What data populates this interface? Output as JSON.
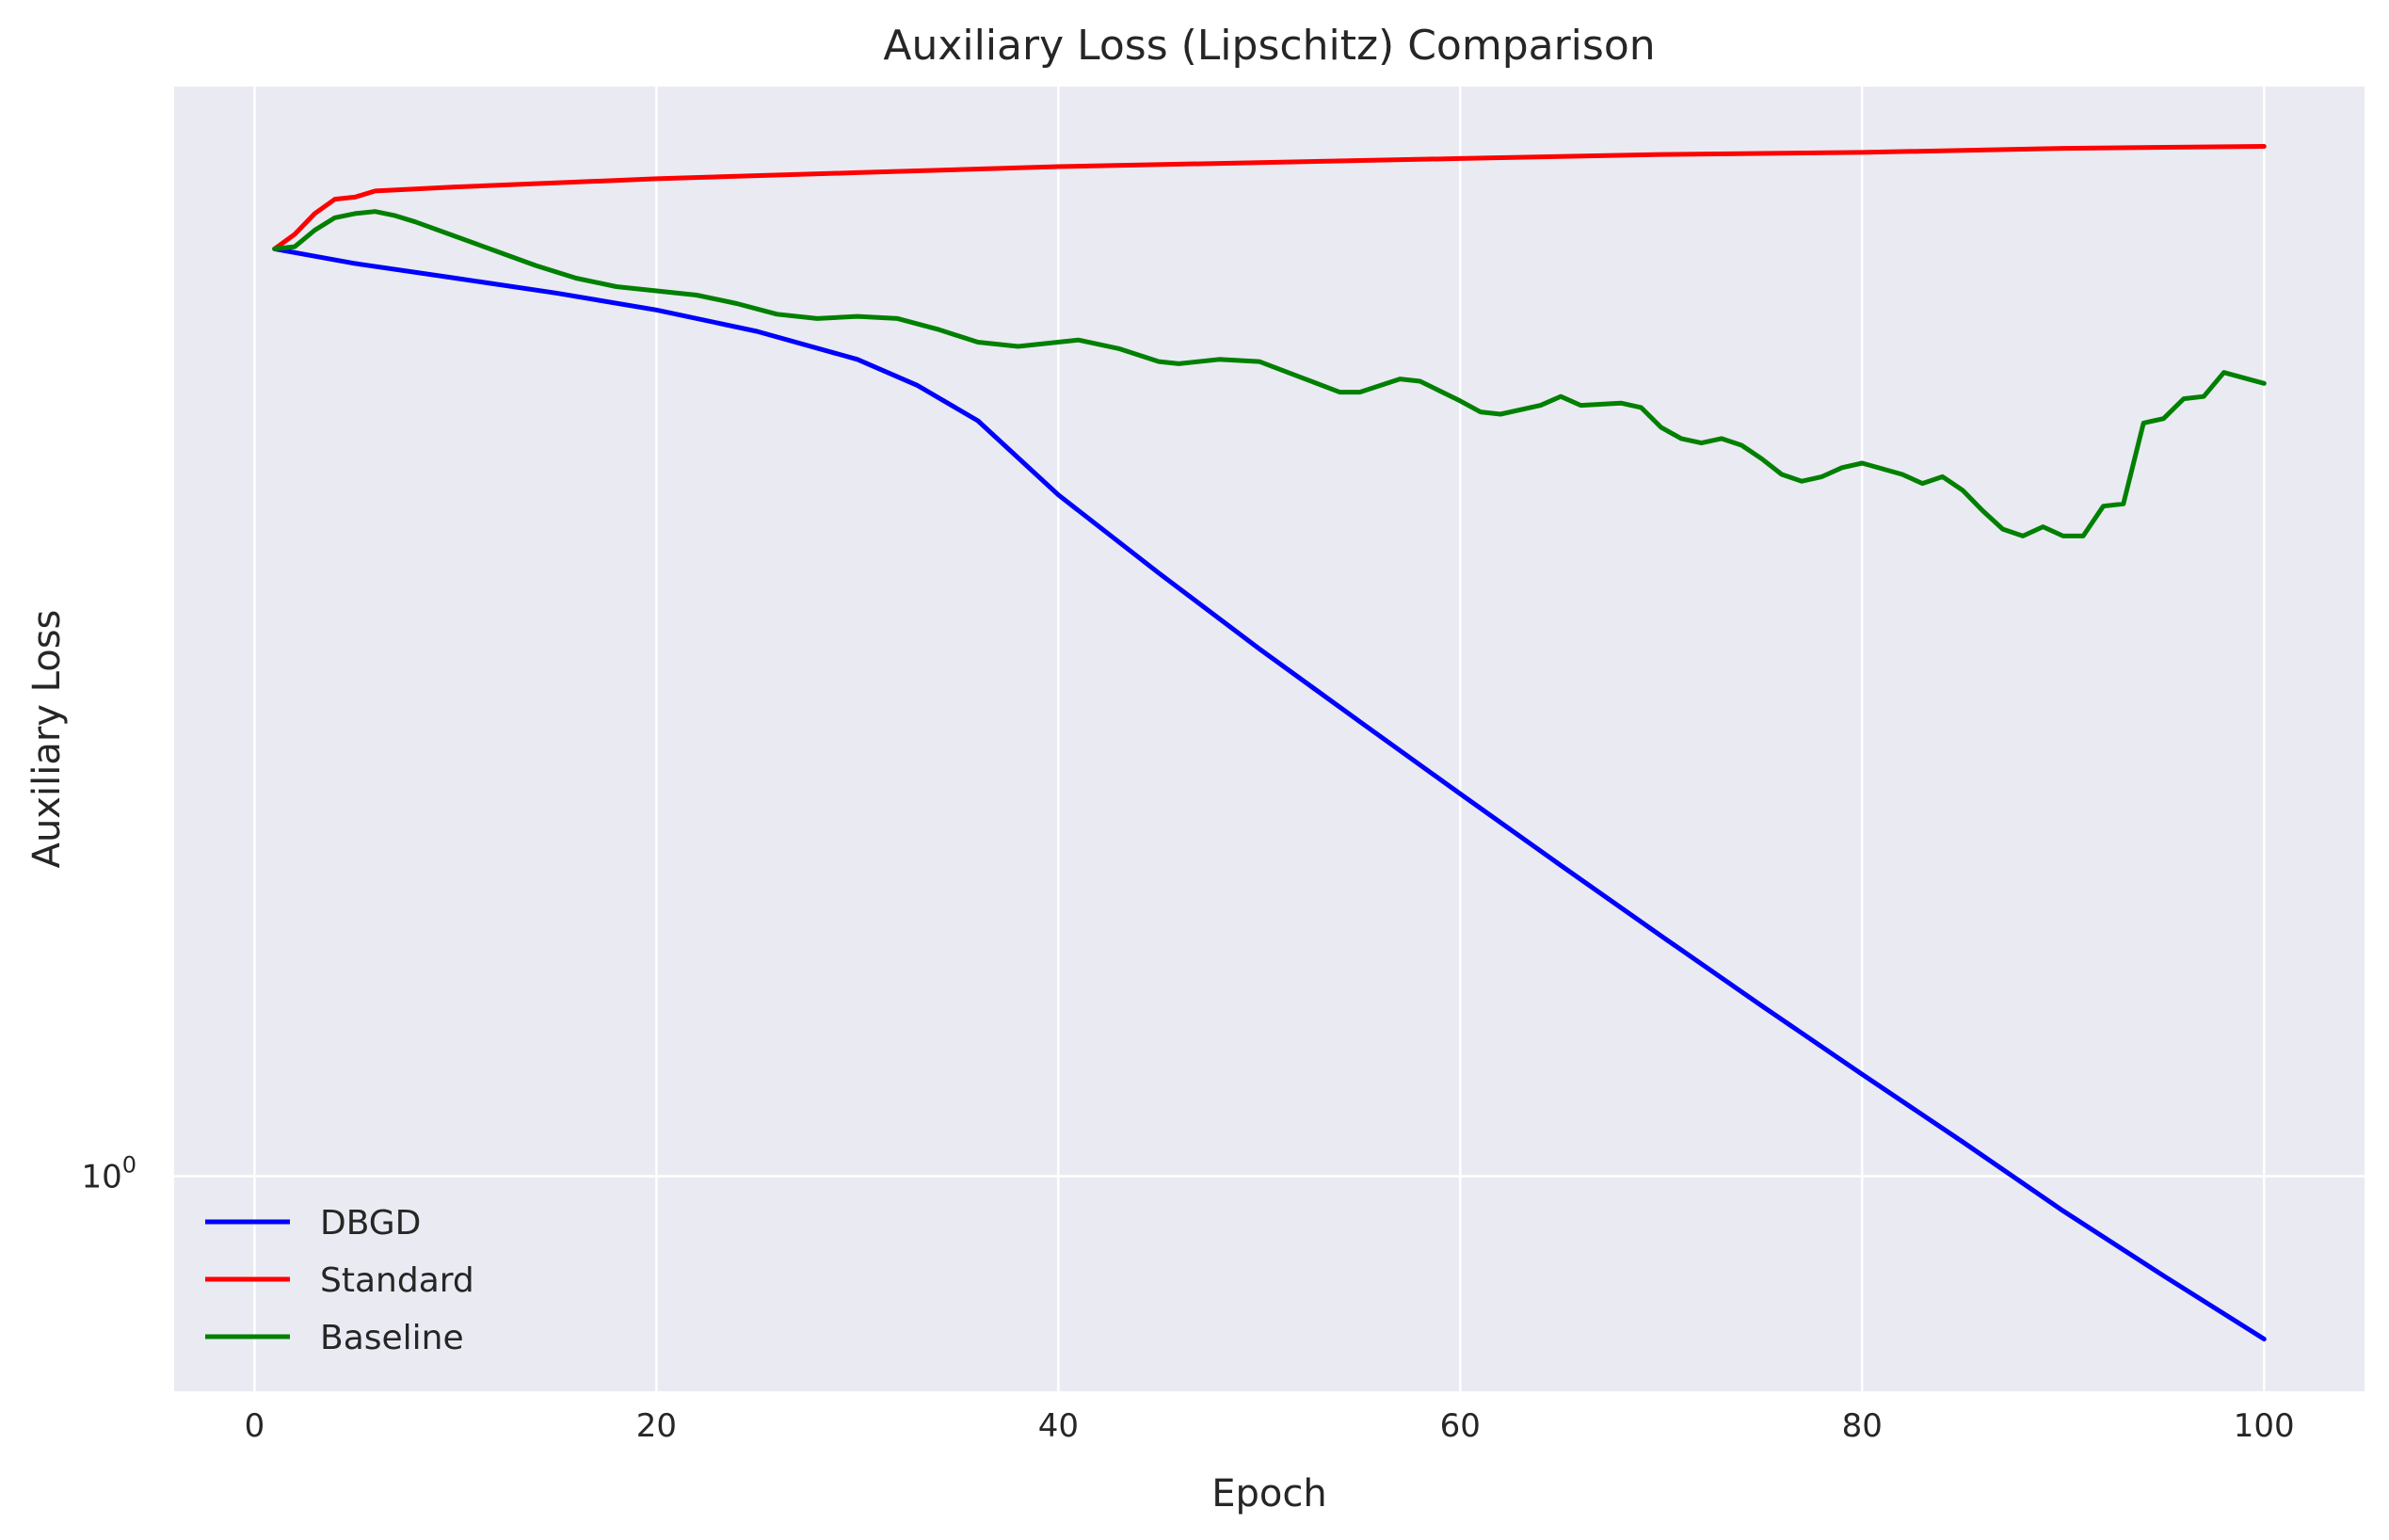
{
  "colors": {
    "plot_background": "#eaeaf2",
    "grid": "#ffffff",
    "text": "#262626"
  },
  "chart_data": {
    "type": "line",
    "title": "Auxiliary Loss (Lipschitz) Comparison",
    "xlabel": "Epoch",
    "ylabel": "Auxiliary Loss",
    "yscale": "log",
    "xlim": [
      -4,
      105
    ],
    "ylim": [
      0.928,
      1.46
    ],
    "xticks": [
      0,
      20,
      40,
      60,
      80,
      100
    ],
    "xtick_labels": [
      "0",
      "20",
      "40",
      "60",
      "80",
      "100"
    ],
    "yticks": [
      1.0
    ],
    "ytick_labels": [
      {
        "base": "10",
        "exp": "0"
      }
    ],
    "grid": true,
    "legend": "lower-left",
    "series": [
      {
        "name": "DBGD",
        "color": "#0000ff",
        "points": [
          [
            1,
            1.38
          ],
          [
            5,
            1.373
          ],
          [
            10,
            1.366
          ],
          [
            15,
            1.359
          ],
          [
            20,
            1.351
          ],
          [
            25,
            1.341
          ],
          [
            30,
            1.328
          ],
          [
            33,
            1.316
          ],
          [
            36,
            1.3
          ],
          [
            40,
            1.267
          ],
          [
            45,
            1.233
          ],
          [
            50,
            1.201
          ],
          [
            55,
            1.171
          ],
          [
            60,
            1.142
          ],
          [
            65,
            1.114
          ],
          [
            70,
            1.087
          ],
          [
            75,
            1.061
          ],
          [
            80,
            1.036
          ],
          [
            85,
            1.012
          ],
          [
            90,
            0.988
          ],
          [
            95,
            0.966
          ],
          [
            100,
            0.945
          ]
        ]
      },
      {
        "name": "Standard",
        "color": "#ff0000",
        "points": [
          [
            1,
            1.38
          ],
          [
            2,
            1.387
          ],
          [
            3,
            1.397
          ],
          [
            4,
            1.404
          ],
          [
            5,
            1.405
          ],
          [
            6,
            1.408
          ],
          [
            10,
            1.41
          ],
          [
            20,
            1.414
          ],
          [
            30,
            1.417
          ],
          [
            40,
            1.42
          ],
          [
            50,
            1.422
          ],
          [
            60,
            1.424
          ],
          [
            70,
            1.426
          ],
          [
            80,
            1.427
          ],
          [
            90,
            1.429
          ],
          [
            100,
            1.43
          ]
        ]
      },
      {
        "name": "Baseline",
        "color": "#008000",
        "points": [
          [
            1,
            1.38
          ],
          [
            2,
            1.381
          ],
          [
            3,
            1.389
          ],
          [
            4,
            1.395
          ],
          [
            5,
            1.397
          ],
          [
            6,
            1.398
          ],
          [
            7,
            1.396
          ],
          [
            8,
            1.393
          ],
          [
            10,
            1.386
          ],
          [
            12,
            1.379
          ],
          [
            14,
            1.372
          ],
          [
            16,
            1.366
          ],
          [
            18,
            1.362
          ],
          [
            20,
            1.36
          ],
          [
            22,
            1.358
          ],
          [
            24,
            1.354
          ],
          [
            26,
            1.349
          ],
          [
            28,
            1.347
          ],
          [
            30,
            1.348
          ],
          [
            32,
            1.347
          ],
          [
            34,
            1.342
          ],
          [
            36,
            1.336
          ],
          [
            38,
            1.334
          ],
          [
            41,
            1.337
          ],
          [
            43,
            1.333
          ],
          [
            45,
            1.327
          ],
          [
            46,
            1.326
          ],
          [
            48,
            1.328
          ],
          [
            50,
            1.327
          ],
          [
            52,
            1.32
          ],
          [
            54,
            1.313
          ],
          [
            55,
            1.313
          ],
          [
            57,
            1.319
          ],
          [
            58,
            1.318
          ],
          [
            60,
            1.309
          ],
          [
            61,
            1.304
          ],
          [
            62,
            1.303
          ],
          [
            64,
            1.307
          ],
          [
            65,
            1.311
          ],
          [
            66,
            1.307
          ],
          [
            68,
            1.308
          ],
          [
            69,
            1.306
          ],
          [
            70,
            1.297
          ],
          [
            71,
            1.292
          ],
          [
            72,
            1.29
          ],
          [
            73,
            1.292
          ],
          [
            74,
            1.289
          ],
          [
            75,
            1.283
          ],
          [
            76,
            1.276
          ],
          [
            77,
            1.273
          ],
          [
            78,
            1.275
          ],
          [
            79,
            1.279
          ],
          [
            80,
            1.281
          ],
          [
            82,
            1.276
          ],
          [
            83,
            1.272
          ],
          [
            84,
            1.275
          ],
          [
            85,
            1.269
          ],
          [
            86,
            1.26
          ],
          [
            87,
            1.252
          ],
          [
            88,
            1.249
          ],
          [
            89,
            1.253
          ],
          [
            90,
            1.249
          ],
          [
            91,
            1.249
          ],
          [
            92,
            1.262
          ],
          [
            93,
            1.263
          ],
          [
            94,
            1.299
          ],
          [
            95,
            1.301
          ],
          [
            96,
            1.31
          ],
          [
            97,
            1.311
          ],
          [
            98,
            1.322
          ],
          [
            100,
            1.317
          ]
        ]
      }
    ]
  }
}
